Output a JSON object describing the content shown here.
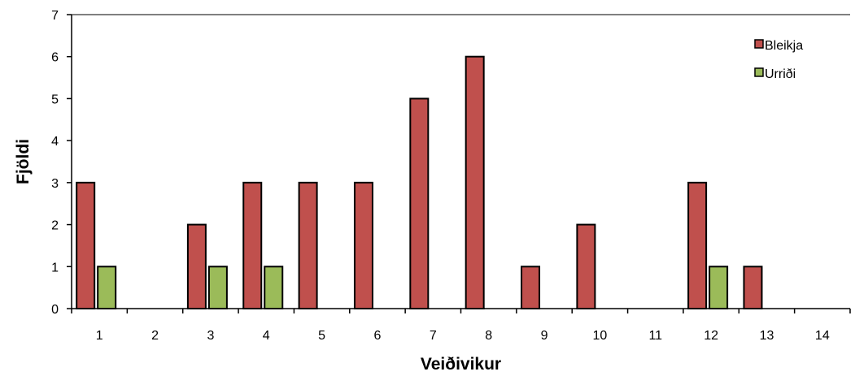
{
  "chart_data": {
    "type": "bar",
    "categories": [
      "1",
      "2",
      "3",
      "4",
      "5",
      "6",
      "7",
      "8",
      "9",
      "10",
      "11",
      "12",
      "13",
      "14"
    ],
    "series": [
      {
        "name": "Bleikja",
        "values": [
          3,
          0,
          2,
          3,
          3,
          3,
          5,
          6,
          1,
          2,
          0,
          3,
          1,
          0
        ]
      },
      {
        "name": "Urriði",
        "values": [
          1,
          0,
          1,
          1,
          0,
          0,
          0,
          0,
          0,
          0,
          0,
          1,
          0,
          0
        ]
      }
    ],
    "xlabel": "Veiðivikur",
    "ylabel": "Fjöldi",
    "ylim": [
      0,
      7
    ],
    "yticks": [
      "0",
      "1",
      "2",
      "3",
      "4",
      "5",
      "6",
      "7"
    ],
    "legend": "top-right",
    "grid": false,
    "colors": {
      "Bleikja": "#c0504d",
      "Urriði": "#9bbb59"
    }
  }
}
